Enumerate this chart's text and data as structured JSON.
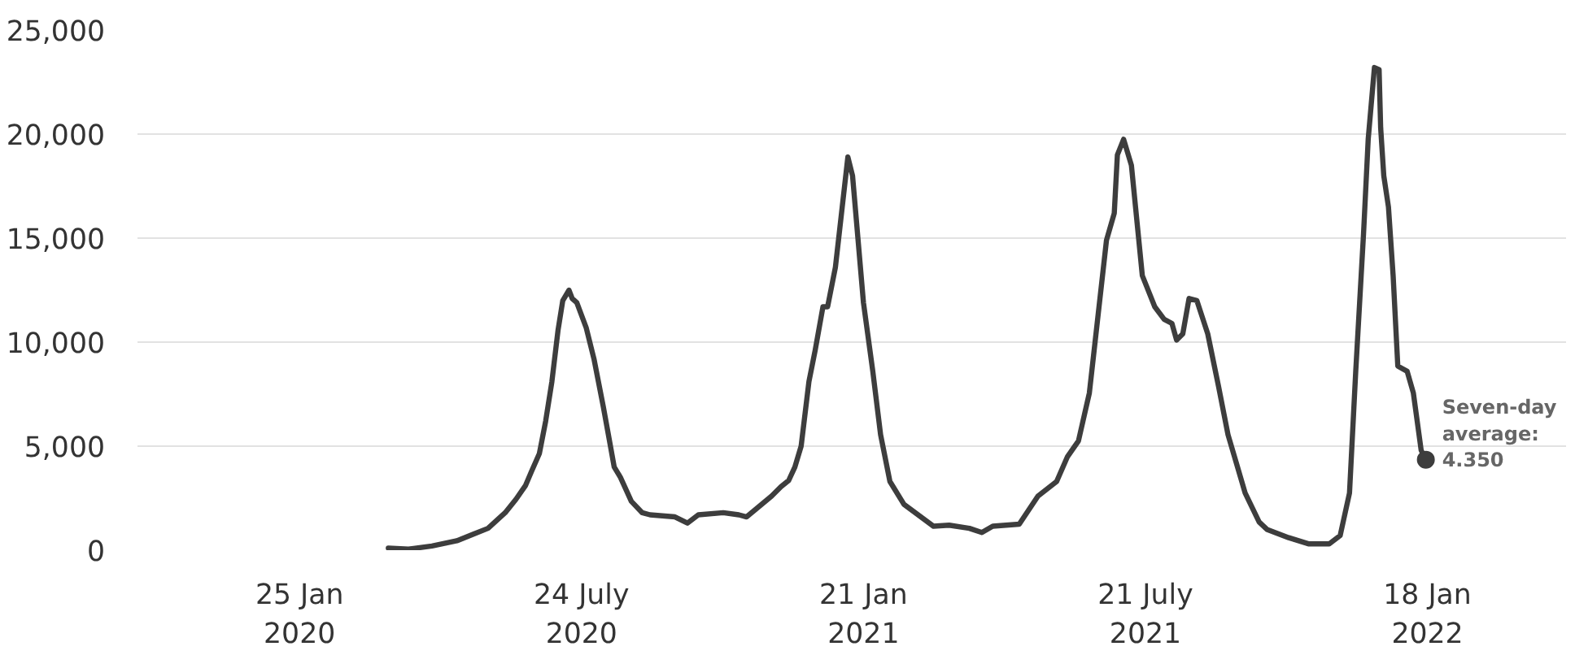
{
  "chart_data": {
    "type": "line",
    "x": [
      "2020-03-22",
      "2020-04-04",
      "2020-04-19",
      "2020-05-05",
      "2020-05-15",
      "2020-05-25",
      "2020-06-05",
      "2020-06-12",
      "2020-06-18",
      "2020-06-22",
      "2020-06-27",
      "2020-07-01",
      "2020-07-05",
      "2020-07-09",
      "2020-07-12",
      "2020-07-16",
      "2020-07-18",
      "2020-07-21",
      "2020-07-27",
      "2020-08-01",
      "2020-08-07",
      "2020-08-11",
      "2020-08-14",
      "2020-08-18",
      "2020-08-25",
      "2020-09-01",
      "2020-09-06",
      "2020-09-22",
      "2020-09-30",
      "2020-10-07",
      "2020-10-23",
      "2020-11-02",
      "2020-11-07",
      "2020-11-15",
      "2020-11-23",
      "2020-11-29",
      "2020-12-04",
      "2020-12-08",
      "2020-12-12",
      "2020-12-17",
      "2020-12-21",
      "2020-12-26",
      "2020-12-29",
      "2021-01-03",
      "2021-01-11",
      "2021-01-14",
      "2021-01-21",
      "2021-01-27",
      "2021-02-01",
      "2021-02-07",
      "2021-02-16",
      "2021-03-07",
      "2021-03-17",
      "2021-03-30",
      "2021-04-07",
      "2021-04-14",
      "2021-05-01",
      "2021-05-13",
      "2021-05-25",
      "2021-06-01",
      "2021-06-08",
      "2021-06-15",
      "2021-06-26",
      "2021-07-01",
      "2021-07-03",
      "2021-07-07",
      "2021-07-12",
      "2021-07-19",
      "2021-07-27",
      "2021-08-02",
      "2021-08-07",
      "2021-08-10",
      "2021-08-14",
      "2021-08-18",
      "2021-08-23",
      "2021-08-30",
      "2021-09-06",
      "2021-09-12",
      "2021-09-23",
      "2021-10-02",
      "2021-10-07",
      "2021-10-21",
      "2021-11-03",
      "2021-11-16",
      "2021-11-23",
      "2021-11-29",
      "2021-12-03",
      "2021-12-08",
      "2021-12-11",
      "2021-12-15",
      "2021-12-18",
      "2021-12-19",
      "2021-12-21",
      "2021-12-24",
      "2021-12-27",
      "2021-12-30",
      "2022-01-05",
      "2022-01-09",
      "2022-01-14",
      "2022-01-17"
    ],
    "series": [
      {
        "color": "#3d3d3d",
        "values": [
          100,
          50,
          200,
          450,
          750,
          1050,
          1800,
          2450,
          3100,
          3800,
          4650,
          6200,
          8100,
          10600,
          12000,
          12500,
          12100,
          11900,
          10700,
          9200,
          6900,
          5250,
          4000,
          3500,
          2350,
          1800,
          1700,
          1600,
          1300,
          1700,
          1800,
          1700,
          1600,
          2100,
          2600,
          3050,
          3350,
          4000,
          5000,
          8100,
          9600,
          11700,
          11700,
          13600,
          18900,
          18000,
          11900,
          8600,
          5550,
          3300,
          2200,
          1150,
          1200,
          1050,
          850,
          1150,
          1250,
          2600,
          3300,
          4500,
          5250,
          7550,
          14900,
          16200,
          19000,
          19750,
          18500,
          13200,
          11700,
          11100,
          10900,
          10100,
          10400,
          12100,
          12000,
          10400,
          7850,
          5550,
          2750,
          1350,
          1000,
          600,
          300,
          300,
          700,
          2750,
          8600,
          15200,
          19750,
          23200,
          23100,
          20300,
          18000,
          16500,
          13200,
          8850,
          8600,
          7550,
          4800,
          4350
        ]
      }
    ],
    "xlim": [
      "2019-10-13",
      "2022-04-17"
    ],
    "xticks": [
      {
        "value": "2020-01-25",
        "label": "25 Jan\n2020"
      },
      {
        "value": "2020-07-24",
        "label": "24 July\n2020"
      },
      {
        "value": "2021-01-21",
        "label": "21 Jan\n2021"
      },
      {
        "value": "2021-07-21",
        "label": "21 July\n2021"
      },
      {
        "value": "2022-01-18",
        "label": "18 Jan\n2022"
      }
    ],
    "ylim": [
      0,
      25000
    ],
    "yticks": [
      0,
      {
        "value": 5000,
        "label": "5,000"
      },
      {
        "value": 10000,
        "label": "10,000"
      },
      {
        "value": 15000,
        "label": "15,000"
      },
      {
        "value": 20000,
        "label": "20,000"
      },
      {
        "value": 25000,
        "label": "25,000"
      }
    ],
    "grid": "y",
    "line_style": "solid",
    "annotations": [
      {
        "text": "Seven-day\naverage:\n4.350",
        "x": "2022-01-17",
        "y": 4350
      }
    ]
  }
}
